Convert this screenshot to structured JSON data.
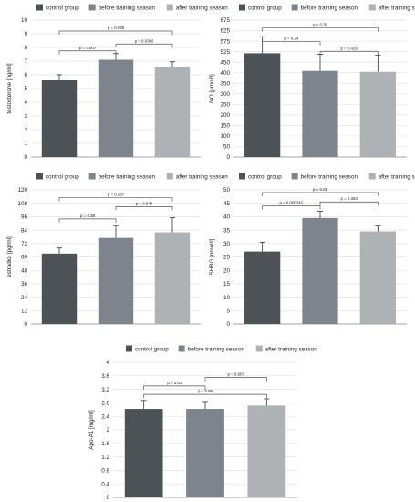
{
  "legend": [
    {
      "name": "control group",
      "color": "#4d5257"
    },
    {
      "name": "before training season",
      "color": "#7d848b"
    },
    {
      "name": "after training season",
      "color": "#aeb2b5"
    }
  ],
  "chart_data": [
    {
      "type": "bar",
      "ylabel": "testosterone [ng/ml]",
      "ylim": [
        0,
        10
      ],
      "yticks": [
        "0",
        "1",
        "2",
        "3",
        "4",
        "5",
        "6",
        "7",
        "8",
        "9",
        "10"
      ],
      "values": [
        5.6,
        7.1,
        6.6
      ],
      "errors": [
        0.4,
        0.45,
        0.35
      ],
      "comparisons": [
        {
          "label": "p = 0.007",
          "from": 0,
          "to": 1,
          "level": 7.75
        },
        {
          "label": "p = 0.0306",
          "from": 1,
          "to": 2,
          "level": 8.25
        },
        {
          "label": "p = 0.065",
          "from": 0,
          "to": 2,
          "level": 9.2
        }
      ]
    },
    {
      "type": "bar",
      "ylabel": "NO [µmol/l]",
      "ylim": [
        0,
        700
      ],
      "yticks": [
        "0",
        "50",
        "100",
        "150",
        "200",
        "250",
        "300",
        "350",
        "400",
        "450",
        "525",
        "575",
        "625",
        "675"
      ],
      "values": [
        530,
        440,
        435
      ],
      "errors": [
        85,
        85,
        85
      ],
      "comparisons": [
        {
          "label": "p = 0.24",
          "from": 0,
          "to": 1,
          "level": 590
        },
        {
          "label": "p = 0.429",
          "from": 1,
          "to": 2,
          "level": 540
        },
        {
          "label": "p = 0.39",
          "from": 0,
          "to": 2,
          "level": 660
        }
      ]
    },
    {
      "type": "bar",
      "ylabel": "estradiol [pg/ml]",
      "ylim": [
        0,
        120
      ],
      "yticks": [
        "0",
        "12",
        "24",
        "36",
        "48",
        "60",
        "72",
        "84",
        "96",
        "108",
        "120"
      ],
      "values": [
        63,
        77,
        82
      ],
      "errors": [
        5,
        11,
        13
      ],
      "comparisons": [
        {
          "label": "p = 0.38",
          "from": 0,
          "to": 1,
          "level": 94
        },
        {
          "label": "p = 0.548",
          "from": 1,
          "to": 2,
          "level": 105
        },
        {
          "label": "p = 0.287",
          "from": 0,
          "to": 2,
          "level": 113
        }
      ]
    },
    {
      "type": "bar",
      "ylabel": "SHBG [nmol/l]",
      "ylim": [
        0,
        50
      ],
      "yticks": [
        "0",
        "5",
        "10",
        "15",
        "20",
        "25",
        "30",
        "35",
        "40",
        "45",
        "50"
      ],
      "values": [
        27,
        39.5,
        34.5
      ],
      "errors": [
        3.5,
        2.5,
        2
      ],
      "comparisons": [
        {
          "label": "p = 0.000242",
          "from": 0,
          "to": 1,
          "level": 44
        },
        {
          "label": "p = 0.363",
          "from": 1,
          "to": 2,
          "level": 45.5
        },
        {
          "label": "p = 0.01",
          "from": 0,
          "to": 2,
          "level": 49
        }
      ]
    },
    {
      "type": "bar",
      "ylabel": "Apo-A1 [mg/ml]",
      "ylim": [
        0,
        4
      ],
      "yticks": [
        "0",
        "0.4",
        "0.8",
        "1.2",
        "1.6",
        "2",
        "2.4",
        "2.8",
        "3.2",
        "3.6",
        "4"
      ],
      "values": [
        2.62,
        2.62,
        2.72
      ],
      "errors": [
        0.25,
        0.22,
        0.2
      ],
      "comparisons": [
        {
          "label": "p = 0.61",
          "from": 0,
          "to": 1,
          "level": 3.3
        },
        {
          "label": "p = 0.98",
          "from": 0,
          "to": 2,
          "level": 3.05
        },
        {
          "label": "p = 0.607",
          "from": 1,
          "to": 2,
          "level": 3.55
        }
      ]
    }
  ]
}
